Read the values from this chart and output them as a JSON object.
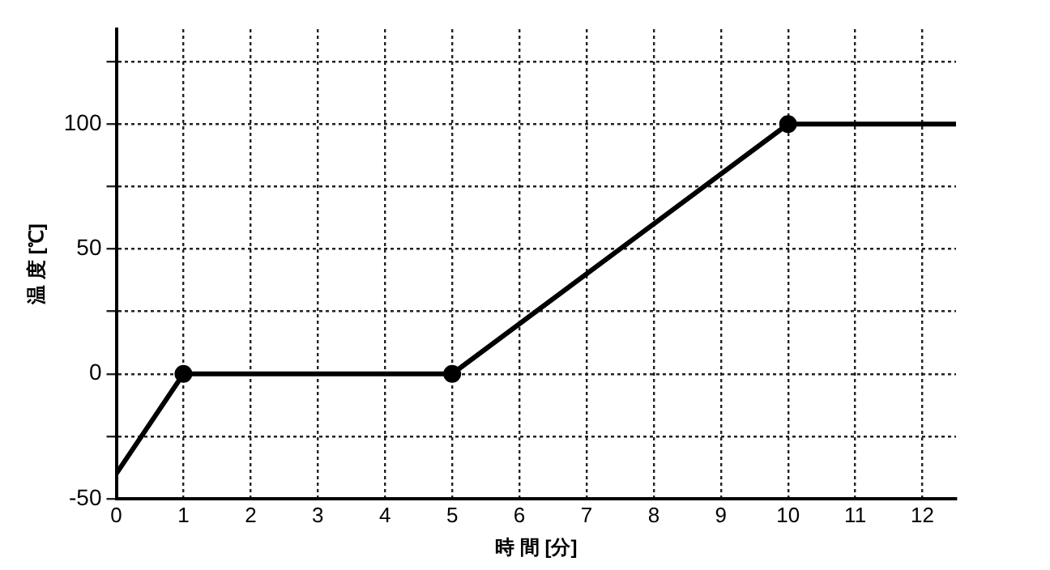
{
  "chart_data": {
    "type": "line",
    "xlabel": "時 間 [分]",
    "ylabel": "温 度 [℃]",
    "xlim": [
      0,
      12.5
    ],
    "xticks": [
      0,
      1,
      2,
      3,
      4,
      5,
      6,
      7,
      8,
      9,
      10,
      11,
      12
    ],
    "ylim": [
      -50,
      138
    ],
    "yticks": [
      -50,
      {
        "value": -25,
        "label": null
      },
      0,
      {
        "value": 25,
        "label": null
      },
      50,
      {
        "value": 75,
        "label": null
      },
      100,
      {
        "value": 125,
        "label": null
      }
    ],
    "grid": true,
    "legend": false,
    "series": [
      {
        "color": "#000000",
        "marker": "none",
        "x": [
          0,
          1,
          5,
          10,
          12.5
        ],
        "values": [
          -40,
          0,
          0,
          100,
          100
        ]
      },
      {
        "type": "scatter",
        "color": "#000000",
        "marker": "circle",
        "x": [
          1,
          5,
          10
        ],
        "values": [
          0,
          0,
          100
        ]
      }
    ]
  }
}
